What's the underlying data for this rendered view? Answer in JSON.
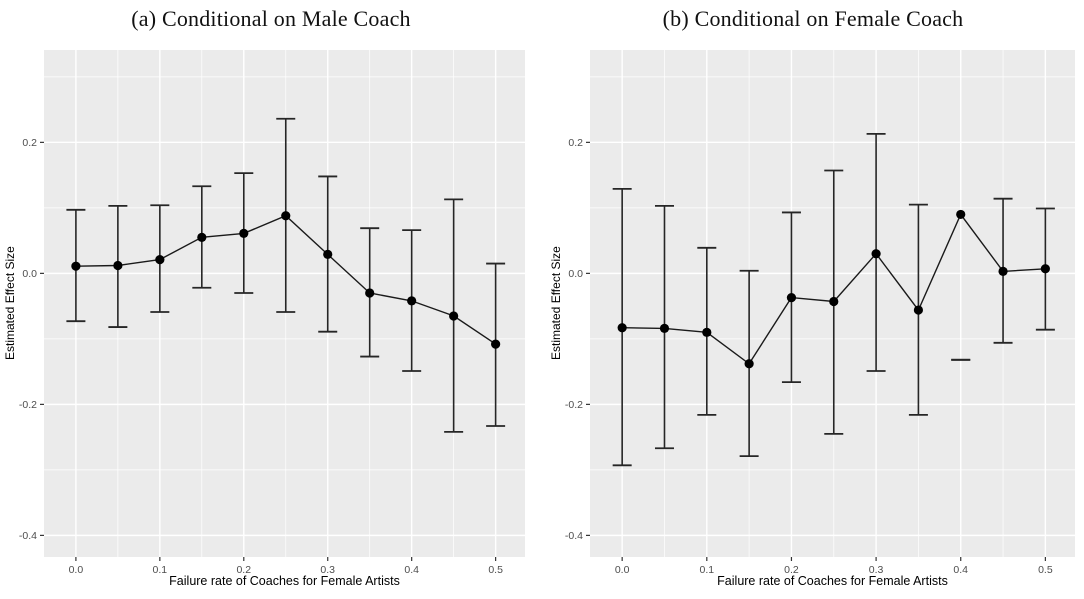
{
  "style": {
    "background": "#ffffff",
    "panel_bg": "#ebebeb",
    "grid_color": "#ffffff",
    "point_color": "#000000",
    "line_color": "#1a1a1a",
    "errorbar_color": "#262626",
    "tick_color": "#333333",
    "tick_label_color": "#4d4d4d",
    "axis_title_color": "#000000",
    "title_color": "#111111"
  },
  "chart_data": [
    {
      "type": "line",
      "subtype": "pointrange-errorbar",
      "title": "(a) Conditional on Male Coach",
      "xlabel": "Failure rate of Coaches for Female Artists",
      "ylabel": "Estimated Effect Size",
      "legend": "none",
      "grid": true,
      "xlim": [
        -0.038,
        0.535
      ],
      "ylim": [
        -0.433,
        0.341
      ],
      "x_ticks": [
        0.0,
        0.1,
        0.2,
        0.3,
        0.4,
        0.5
      ],
      "x_tick_labels": [
        "0.0",
        "0.1",
        "0.2",
        "0.3",
        "0.4",
        "0.5"
      ],
      "y_ticks": [
        0.2,
        0.0,
        -0.2,
        -0.4
      ],
      "y_tick_labels": [
        "0.2",
        "0.0",
        "-0.2",
        "-0.4"
      ],
      "x_minor_ticks": [
        0.05,
        0.15,
        0.25,
        0.35,
        0.45
      ],
      "y_minor_ticks": [
        0.3,
        0.1,
        -0.1,
        -0.3
      ],
      "x": [
        0.0,
        0.05,
        0.1,
        0.15,
        0.2,
        0.25,
        0.3,
        0.35,
        0.4,
        0.45,
        0.5
      ],
      "y": [
        0.011,
        0.012,
        0.021,
        0.055,
        0.061,
        0.088,
        0.029,
        -0.03,
        -0.042,
        -0.065,
        -0.108
      ],
      "ci_low": [
        -0.073,
        -0.082,
        -0.059,
        -0.022,
        -0.03,
        -0.059,
        -0.089,
        -0.127,
        -0.149,
        -0.242,
        -0.233
      ],
      "ci_high": [
        0.097,
        0.103,
        0.104,
        0.133,
        0.153,
        0.236,
        0.148,
        0.069,
        0.066,
        0.113,
        0.015
      ]
    },
    {
      "type": "line",
      "subtype": "pointrange-errorbar",
      "title": "(b) Conditional on Female Coach",
      "xlabel": "Failure rate of Coaches for Female Artists",
      "ylabel": "Estimated Effect Size",
      "legend": "none",
      "grid": true,
      "note": "interval at x=0.4 collapses to a single horizontal dash at -0.132",
      "xlim": [
        -0.038,
        0.535
      ],
      "ylim": [
        -0.433,
        0.341
      ],
      "x_ticks": [
        0.0,
        0.1,
        0.2,
        0.3,
        0.4,
        0.5
      ],
      "x_tick_labels": [
        "0.0",
        "0.1",
        "0.2",
        "0.3",
        "0.4",
        "0.5"
      ],
      "y_ticks": [
        0.2,
        0.0,
        -0.2,
        -0.4
      ],
      "y_tick_labels": [
        "0.2",
        "0.0",
        "-0.2",
        "-0.4"
      ],
      "x_minor_ticks": [
        0.05,
        0.15,
        0.25,
        0.35,
        0.45
      ],
      "y_minor_ticks": [
        0.3,
        0.1,
        -0.1,
        -0.3
      ],
      "x": [
        0.0,
        0.05,
        0.1,
        0.15,
        0.2,
        0.25,
        0.3,
        0.35,
        0.4,
        0.45,
        0.5
      ],
      "y": [
        -0.083,
        -0.084,
        -0.09,
        -0.138,
        -0.037,
        -0.043,
        0.03,
        -0.056,
        0.09,
        0.003,
        0.007
      ],
      "ci_low": [
        -0.293,
        -0.267,
        -0.216,
        -0.279,
        -0.166,
        -0.245,
        -0.149,
        -0.216,
        -0.132,
        -0.106,
        -0.086
      ],
      "ci_high": [
        0.129,
        0.103,
        0.039,
        0.004,
        0.093,
        0.157,
        0.213,
        0.105,
        -0.132,
        0.114,
        0.099
      ]
    }
  ]
}
